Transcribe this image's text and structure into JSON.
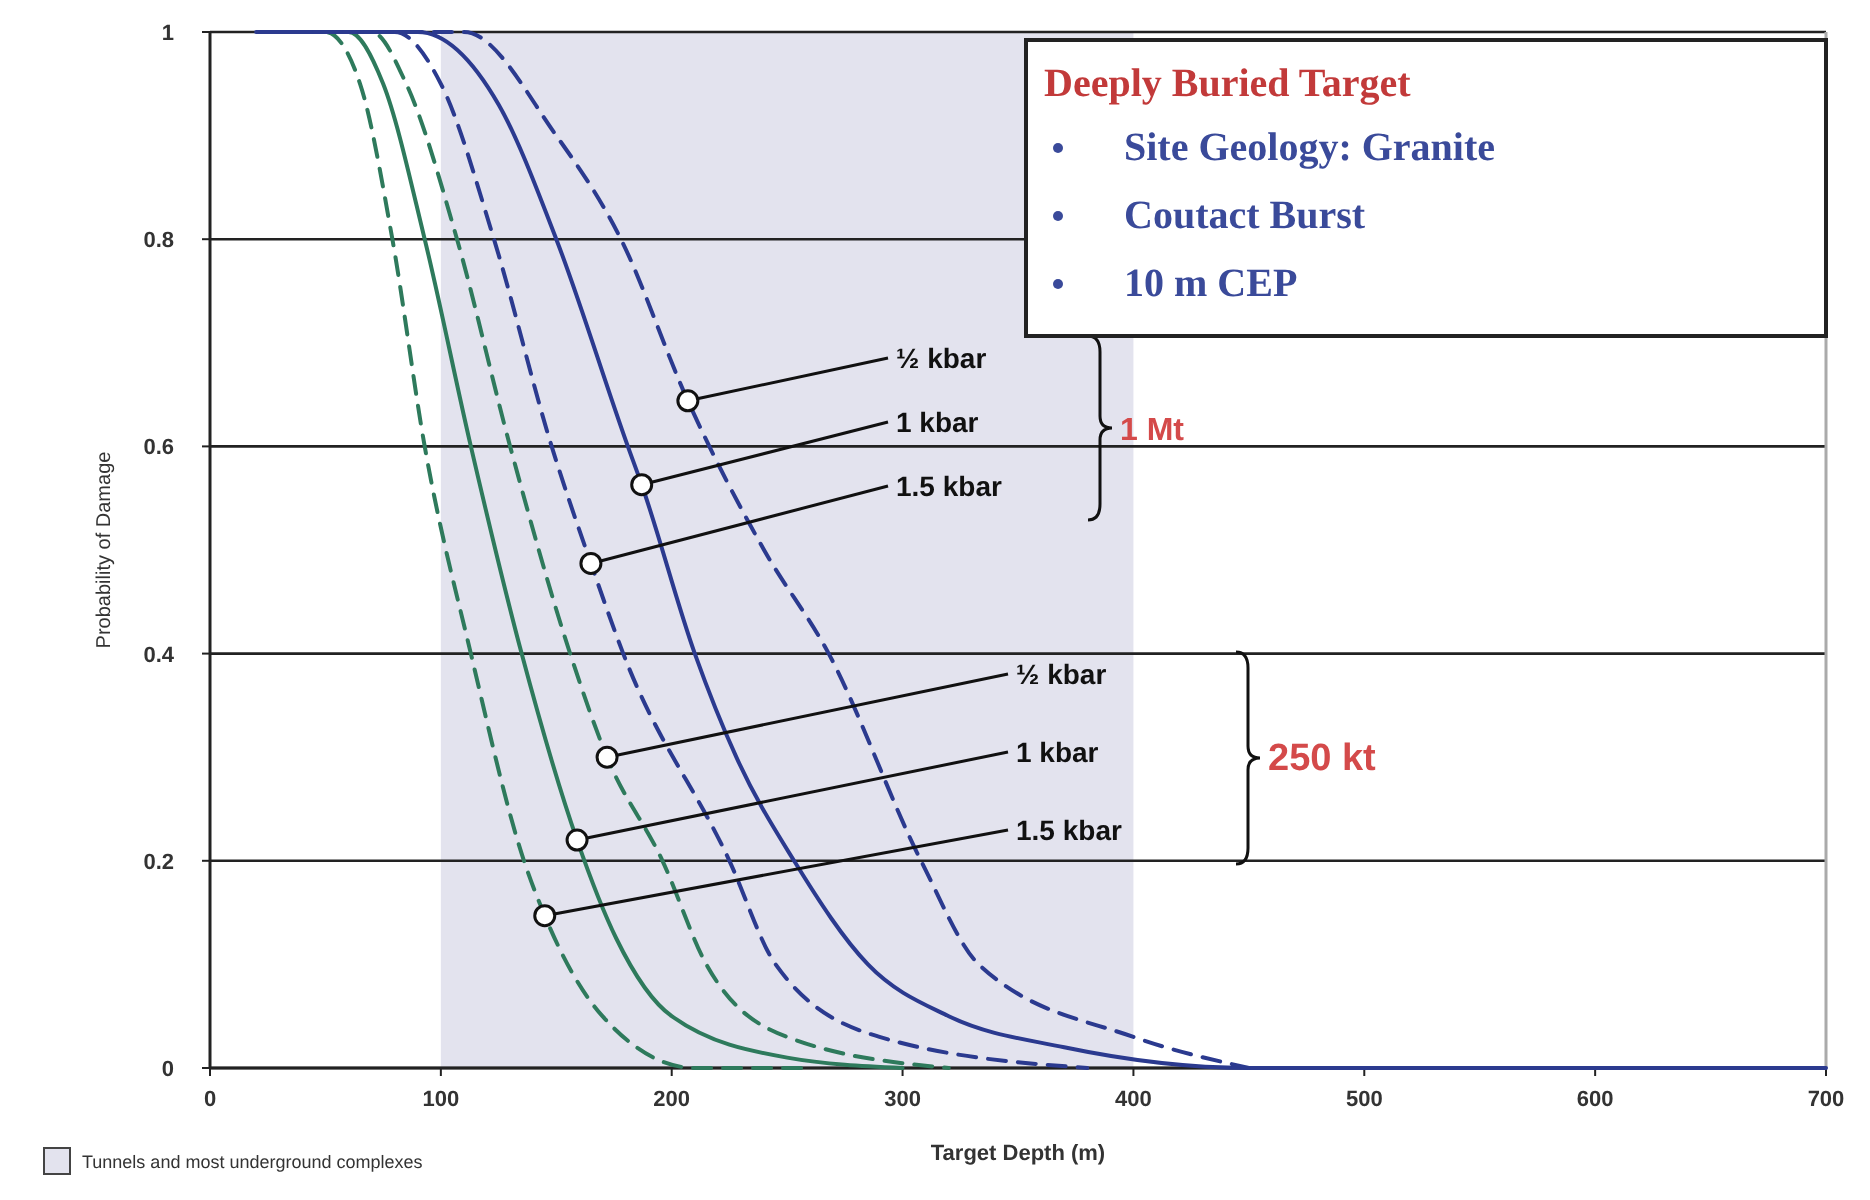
{
  "chart_data": {
    "type": "line",
    "title": "Deeply Buried Target",
    "xlabel": "Target Depth (m)",
    "ylabel": "Probability of Damage",
    "xlim": [
      0,
      700
    ],
    "xticks": [
      0,
      100,
      200,
      300,
      400,
      500,
      600,
      700
    ],
    "ylim": [
      0,
      1
    ],
    "yticks": [
      0,
      {
        "value": 0.2,
        "label": "0.2"
      },
      {
        "value": 0.4,
        "label": "0.4"
      },
      {
        "value": 0.6,
        "label": "0.6"
      },
      {
        "value": 0.8,
        "label": "0.8"
      },
      1
    ],
    "grid": "y",
    "bands": [
      {
        "axis": "x",
        "from": 100,
        "to": 400,
        "label": "Tunnels and most underground complexes",
        "color": "#e3e3ee"
      }
    ],
    "series": [
      {
        "color": "#2e7a5c",
        "line_style": "dashed",
        "x": [
          25,
          50,
          65,
          79,
          93,
          113,
          136,
          145,
          170,
          210,
          260
        ],
        "values": [
          1,
          1,
          0.95,
          0.8,
          0.6,
          0.4,
          0.2,
          0.147,
          0.05,
          0,
          0
        ]
      },
      {
        "color": "#2e7a5c",
        "line_style": "solid",
        "x": [
          30,
          60,
          75,
          93,
          113,
          135,
          159,
          176,
          200,
          250,
          300
        ],
        "values": [
          1,
          1,
          0.95,
          0.8,
          0.6,
          0.4,
          0.22,
          0.125,
          0.05,
          0.01,
          0
        ]
      },
      {
        "color": "#2e7a5c",
        "line_style": "dashed",
        "x": [
          35,
          70,
          85,
          107,
          130,
          156,
          172,
          196,
          215,
          250,
          320
        ],
        "values": [
          1,
          1,
          0.95,
          0.8,
          0.6,
          0.4,
          0.3,
          0.2,
          0.1,
          0.03,
          0
        ]
      },
      {
        "color": "#2b3a8f",
        "line_style": "dashed",
        "x": [
          40,
          80,
          100,
          123,
          148,
          165,
          179,
          225,
          245,
          290,
          380
        ],
        "values": [
          1,
          1,
          0.95,
          0.8,
          0.6,
          0.487,
          0.4,
          0.2,
          0.1,
          0.03,
          0
        ]
      },
      {
        "color": "#2b3a8f",
        "line_style": "solid",
        "x": [
          20,
          90,
          125,
          150,
          181,
          187,
          210,
          228,
          253,
          285,
          320,
          370,
          450,
          700
        ],
        "values": [
          1,
          1,
          0.93,
          0.8,
          0.6,
          0.563,
          0.4,
          0.3,
          0.2,
          0.1,
          0.05,
          0.02,
          0,
          0
        ]
      },
      {
        "color": "#2b3a8f",
        "line_style": "dashed",
        "x": [
          45,
          110,
          150,
          178,
          207,
          240,
          268,
          308,
          333,
          400,
          450
        ],
        "values": [
          1,
          1,
          0.9,
          0.8,
          0.644,
          0.5,
          0.4,
          0.2,
          0.1,
          0.03,
          0
        ]
      }
    ],
    "annotations": [
      {
        "text": "½ kbar",
        "x": 207,
        "y": 0.644
      },
      {
        "text": "1 kbar",
        "x": 187,
        "y": 0.563
      },
      {
        "text": "1.5 kbar",
        "x": 165,
        "y": 0.487
      },
      {
        "text": "½ kbar",
        "x": 172,
        "y": 0.3
      },
      {
        "text": "1 kbar",
        "x": 159,
        "y": 0.22
      },
      {
        "text": "1.5 kbar",
        "x": 145,
        "y": 0.147
      },
      "1 Mt",
      "250 kt",
      "Site Geology: Granite",
      "Coutact Burst",
      "10 m CEP"
    ]
  }
}
